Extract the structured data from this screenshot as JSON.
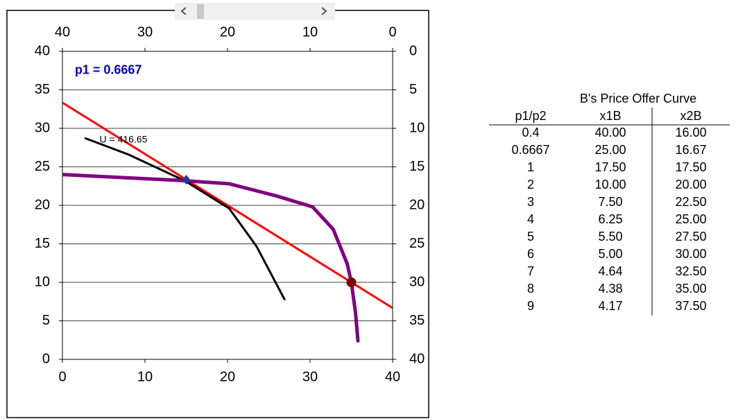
{
  "chart_data": {
    "type": "line",
    "annotations": [
      {
        "text": "p1 = 0.6667",
        "x": 1.5,
        "y": 37.5,
        "color": "#0000cc"
      },
      {
        "text": "U = 416.65",
        "x": 4.5,
        "y": 28.5,
        "color": "#000000"
      }
    ],
    "xlim": [
      0,
      40
    ],
    "xticks": [
      0,
      10,
      20,
      30,
      40
    ],
    "x2lim": [
      40,
      0
    ],
    "x2ticks": [
      40,
      30,
      20,
      10,
      0
    ],
    "ylim": [
      0,
      40
    ],
    "yticks": [
      0,
      5,
      10,
      15,
      20,
      25,
      30,
      35,
      40
    ],
    "y2lim": [
      40,
      0
    ],
    "y2ticks": [
      0,
      5,
      10,
      15,
      20,
      25,
      30,
      35,
      40
    ],
    "grid": true,
    "series": [
      {
        "color": "#ff0000",
        "width": 3,
        "x": [
          0,
          40
        ],
        "values": [
          33.33,
          6.67
        ]
      },
      {
        "color": "#000000",
        "width": 3,
        "x": [
          2.8,
          8,
          14.8,
          20.2,
          23.5,
          26.9
        ],
        "values": [
          28.7,
          26.6,
          23.2,
          19.6,
          14.7,
          7.8
        ]
      },
      {
        "color": "#800080",
        "width": 5,
        "x": [
          0,
          14.8,
          20.2,
          26,
          30.3,
          32.8,
          34.5,
          35,
          35.5,
          35.8
        ],
        "values": [
          24,
          23.2,
          22.8,
          21.2,
          19.8,
          16.9,
          12.4,
          10,
          6.1,
          2.4
        ]
      },
      {
        "color": "#1f3c99",
        "marker": "diamond",
        "x": [
          15
        ],
        "values": [
          23.33
        ]
      },
      {
        "color": "#800000",
        "marker": "circle",
        "x": [
          35
        ],
        "values": [
          10
        ]
      }
    ]
  },
  "table": {
    "title": "B's Price Offer Curve",
    "header": [
      "p1/p2",
      "x1B",
      "x2B"
    ],
    "rows": [
      [
        "0.4",
        "40.00",
        "16.00"
      ],
      [
        "0.6667",
        "25.00",
        "16.67"
      ],
      [
        "1",
        "17.50",
        "17.50"
      ],
      [
        "2",
        "10.00",
        "20.00"
      ],
      [
        "3",
        "7.50",
        "22.50"
      ],
      [
        "4",
        "6.25",
        "25.00"
      ],
      [
        "5",
        "5.50",
        "27.50"
      ],
      [
        "6",
        "5.00",
        "30.00"
      ],
      [
        "7",
        "4.64",
        "32.50"
      ],
      [
        "8",
        "4.38",
        "35.00"
      ],
      [
        "9",
        "4.17",
        "37.50"
      ]
    ]
  }
}
